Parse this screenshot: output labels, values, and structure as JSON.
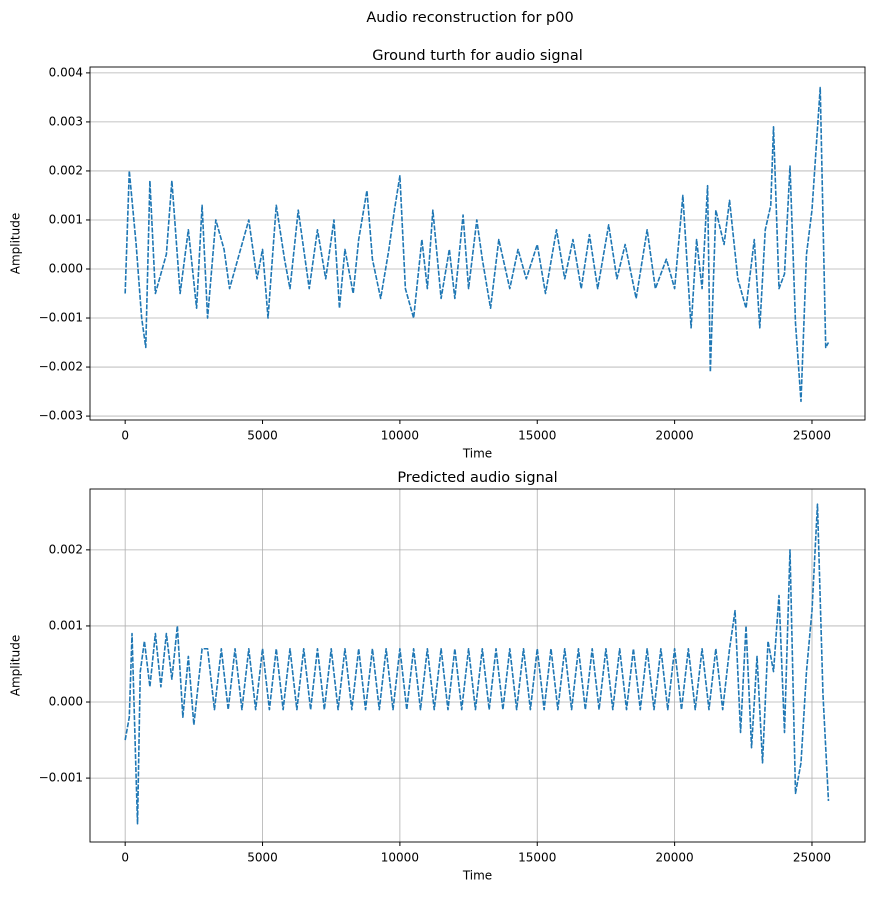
{
  "title": "Audio reconstruction for p00",
  "chart_data": [
    {
      "type": "line",
      "title": "Ground turth for audio signal",
      "xlabel": "Time",
      "ylabel": "Amplitude",
      "color": "#1f77b4",
      "grid": "y",
      "xlim": [
        -1280,
        26930
      ],
      "ylim": [
        -0.00308,
        0.00412
      ],
      "xticks": [
        0,
        5000,
        10000,
        15000,
        20000,
        25000
      ],
      "yticks": [
        {
          "value": -0.003,
          "label": "−0.003"
        },
        {
          "value": -0.002,
          "label": "−0.002"
        },
        {
          "value": -0.001,
          "label": "−0.001"
        },
        {
          "value": 0,
          "label": "0.000"
        },
        {
          "value": 0.001,
          "label": "0.001"
        },
        {
          "value": 0.002,
          "label": "0.002"
        },
        {
          "value": 0.003,
          "label": "0.003"
        },
        {
          "value": 0.004,
          "label": "0.004"
        }
      ],
      "x": [
        0,
        150,
        400,
        600,
        750,
        900,
        1100,
        1500,
        1700,
        2000,
        2300,
        2600,
        2800,
        3000,
        3300,
        3600,
        3800,
        4200,
        4500,
        4800,
        5000,
        5200,
        5500,
        5800,
        6000,
        6300,
        6700,
        7000,
        7300,
        7600,
        7800,
        8000,
        8300,
        8500,
        8800,
        9000,
        9300,
        9600,
        9800,
        10000,
        10200,
        10500,
        10800,
        11000,
        11200,
        11500,
        11800,
        12000,
        12300,
        12500,
        12800,
        13000,
        13300,
        13600,
        14000,
        14300,
        14600,
        15000,
        15300,
        15700,
        16000,
        16300,
        16600,
        16900,
        17200,
        17600,
        17900,
        18200,
        18600,
        19000,
        19300,
        19700,
        20000,
        20300,
        20600,
        20800,
        21000,
        21200,
        21300,
        21500,
        21800,
        22000,
        22300,
        22600,
        22900,
        23100,
        23300,
        23500,
        23600,
        23800,
        24000,
        24200,
        24400,
        24600,
        24800,
        25000,
        25300,
        25500,
        25600
      ],
      "values": [
        -0.0005,
        0.002,
        0.0005,
        -0.001,
        -0.0016,
        0.0018,
        -0.0005,
        0.0003,
        0.0018,
        -0.0005,
        0.0008,
        -0.0008,
        0.0013,
        -0.001,
        0.001,
        0.0004,
        -0.0004,
        0.0004,
        0.001,
        -0.0002,
        0.0004,
        -0.001,
        0.0013,
        0.0002,
        -0.0004,
        0.0012,
        -0.0004,
        0.0008,
        -0.0002,
        0.001,
        -0.0008,
        0.0004,
        -0.0005,
        0.0006,
        0.0016,
        0.0002,
        -0.0006,
        0.0004,
        0.0012,
        0.0019,
        -0.0004,
        -0.001,
        0.0006,
        -0.0004,
        0.0012,
        -0.0006,
        0.0004,
        -0.0006,
        0.0011,
        -0.0004,
        0.001,
        0.0002,
        -0.0008,
        0.0006,
        -0.0004,
        0.0004,
        -0.0002,
        0.0005,
        -0.0005,
        0.0008,
        -0.0002,
        0.0006,
        -0.0004,
        0.0007,
        -0.0004,
        0.0009,
        -0.0002,
        0.0005,
        -0.0006,
        0.0008,
        -0.0004,
        0.0002,
        -0.0004,
        0.0015,
        -0.0012,
        0.0006,
        -0.0004,
        0.0017,
        -0.0021,
        0.0012,
        0.0005,
        0.0014,
        -0.0002,
        -0.0008,
        0.0006,
        -0.0012,
        0.0008,
        0.0013,
        0.0029,
        -0.0004,
        -0.0001,
        0.0021,
        -0.0011,
        -0.0027,
        0.0003,
        0.0012,
        0.0037,
        -0.0016,
        -0.0015
      ]
    },
    {
      "type": "line",
      "title": "Predicted audio signal",
      "xlabel": "Time",
      "ylabel": "Amplitude",
      "color": "#1f77b4",
      "grid": "both",
      "xlim": [
        -1280,
        26930
      ],
      "ylim": [
        -0.00184,
        0.0028
      ],
      "xticks": [
        0,
        5000,
        10000,
        15000,
        20000,
        25000
      ],
      "yticks": [
        {
          "value": -0.001,
          "label": "−0.001"
        },
        {
          "value": 0,
          "label": "0.000"
        },
        {
          "value": 0.001,
          "label": "0.001"
        },
        {
          "value": 0.002,
          "label": "0.002"
        }
      ],
      "x": [
        0,
        150,
        250,
        400,
        450,
        550,
        700,
        900,
        1100,
        1300,
        1500,
        1700,
        1900,
        2100,
        2300,
        2500,
        2800,
        3000,
        3250,
        3500,
        3750,
        4000,
        4250,
        4500,
        4750,
        5000,
        5250,
        5500,
        5750,
        6000,
        6250,
        6500,
        6750,
        7000,
        7250,
        7500,
        7750,
        8000,
        8250,
        8500,
        8750,
        9000,
        9250,
        9500,
        9750,
        10000,
        10250,
        10500,
        10750,
        11000,
        11250,
        11500,
        11750,
        12000,
        12250,
        12500,
        12750,
        13000,
        13250,
        13500,
        13750,
        14000,
        14250,
        14500,
        14750,
        15000,
        15250,
        15500,
        15750,
        16000,
        16250,
        16500,
        16750,
        17000,
        17250,
        17500,
        17750,
        18000,
        18250,
        18500,
        18750,
        19000,
        19250,
        19500,
        19750,
        20000,
        20250,
        20500,
        20750,
        21000,
        21250,
        21500,
        21750,
        22000,
        22200,
        22400,
        22600,
        22800,
        23000,
        23200,
        23400,
        23600,
        23800,
        24000,
        24200,
        24400,
        24600,
        24800,
        25000,
        25200,
        25400,
        25600
      ],
      "values": [
        -0.0005,
        -0.0002,
        0.0009,
        -0.001,
        -0.0016,
        0.0004,
        0.0008,
        0.0002,
        0.0009,
        0.0002,
        0.0009,
        0.0003,
        0.001,
        -0.0002,
        0.0006,
        -0.0003,
        0.0007,
        0.0007,
        -0.0001,
        0.0007,
        -0.0001,
        0.0007,
        -0.0001,
        0.0007,
        -0.0001,
        0.0007,
        -0.0001,
        0.0007,
        -0.0001,
        0.0007,
        -0.0001,
        0.0007,
        -0.0001,
        0.0007,
        -0.0001,
        0.0007,
        -0.0001,
        0.0007,
        -0.0001,
        0.0007,
        -0.0001,
        0.0007,
        -0.0001,
        0.0007,
        -0.0001,
        0.0007,
        -0.0001,
        0.0007,
        -0.0001,
        0.0007,
        -0.0001,
        0.0007,
        -0.0001,
        0.0007,
        -0.0001,
        0.0007,
        -0.0001,
        0.0007,
        -0.0001,
        0.0007,
        -0.0001,
        0.0007,
        -0.0001,
        0.0007,
        -0.0001,
        0.0007,
        -0.0001,
        0.0007,
        -0.0001,
        0.0007,
        -0.0001,
        0.0007,
        -0.0001,
        0.0007,
        -0.0001,
        0.0007,
        -0.0001,
        0.0007,
        -0.0001,
        0.0007,
        -0.0001,
        0.0007,
        -0.0001,
        0.0007,
        -0.0001,
        0.0007,
        -0.0001,
        0.0007,
        -0.0001,
        0.0007,
        -0.0001,
        0.0007,
        -0.0001,
        0.0007,
        0.0012,
        -0.0004,
        0.001,
        -0.0006,
        0.0006,
        -0.0008,
        0.0008,
        0.0004,
        0.0014,
        -0.0004,
        0.002,
        -0.0012,
        -0.0008,
        0.0004,
        0.0012,
        0.0026,
        0.0001,
        -0.0013
      ]
    }
  ]
}
